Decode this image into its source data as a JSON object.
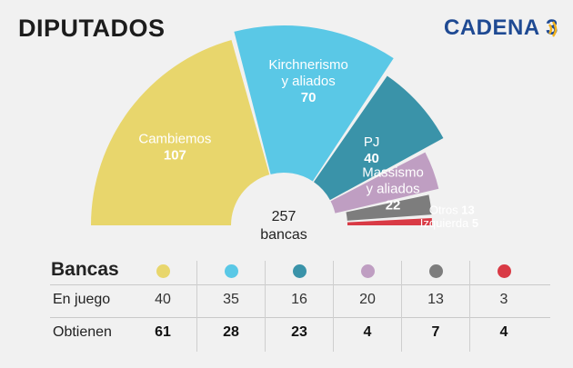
{
  "header": {
    "title": "DIPUTADOS",
    "brand": "CADENA 3",
    "brand_color": "#1f4a93"
  },
  "chart_data": {
    "type": "pie",
    "subtype": "semicircle-parliament",
    "total_value": "257",
    "total_label": "bancas",
    "series": [
      {
        "name": "Cambiemos",
        "value": 107,
        "color": "#e8d66c"
      },
      {
        "name": "Kirchnerismo y aliados",
        "value": 70,
        "color": "#5ac8e6"
      },
      {
        "name": "PJ",
        "value": 40,
        "color": "#3a93a9"
      },
      {
        "name": "Massismo y aliados",
        "value": 22,
        "color": "#bf9ec2"
      },
      {
        "name": "Otros",
        "value": 13,
        "color": "#7d7d7d"
      },
      {
        "name": "Izquierda",
        "value": 5,
        "color": "#d93a45"
      }
    ]
  },
  "table": {
    "header_label": "Bancas",
    "rows": [
      {
        "label": "En juego",
        "values": [
          "40",
          "35",
          "16",
          "20",
          "13",
          "3"
        ]
      },
      {
        "label": "Obtienen",
        "values": [
          "61",
          "28",
          "23",
          "4",
          "7",
          "4"
        ]
      }
    ]
  }
}
